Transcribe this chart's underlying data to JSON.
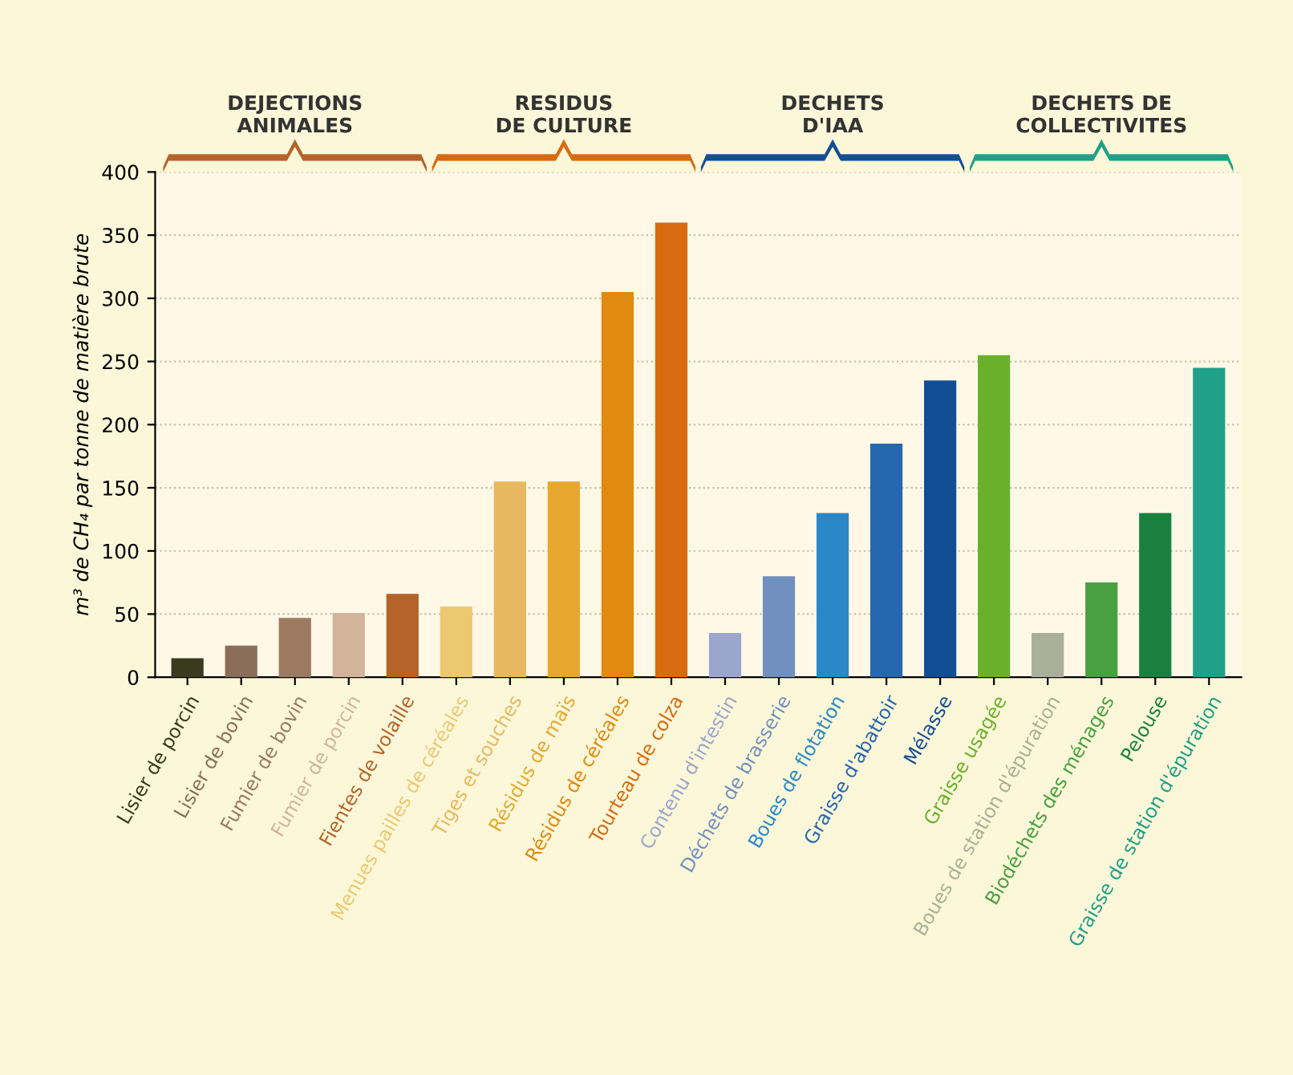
{
  "chart_data": {
    "type": "bar",
    "ylabel": "m³ de CH₄ par tonne de matière brute",
    "categories": [
      "Lisier de porcin",
      "Lisier de bovin",
      "Fumier de bovin",
      "Fumier de porcin",
      "Fientes de volaille",
      "Menues pailles de céréales",
      "Tiges et souches",
      "Résidus de maïs",
      "Résidus de céréales",
      "Tourteau de colza",
      "Contenu d'intestin",
      "Déchets de brasserie",
      "Boues de flotation",
      "Graisse d'abattoir",
      "Mélasse",
      "Graisse usagée",
      "Boues de station d'épuration",
      "Biodéchets des ménages",
      "Pelouse",
      "Graisse de station d'épuration"
    ],
    "values": [
      15,
      25,
      47,
      51,
      66,
      56,
      155,
      155,
      305,
      360,
      35,
      80,
      130,
      185,
      235,
      255,
      35,
      75,
      130,
      245
    ],
    "colors": [
      "#3a3a1e",
      "#8a6e5a",
      "#9c7a62",
      "#d2b49a",
      "#b5632a",
      "#ecc870",
      "#e8b860",
      "#e8a830",
      "#e08a10",
      "#d86a10",
      "#9aa6cc",
      "#7090c0",
      "#2a88c8",
      "#2668b0",
      "#134e94",
      "#6ab02a",
      "#a8b098",
      "#48a040",
      "#1a8040",
      "#20a088"
    ],
    "annotations": [
      "DEJECTIONS\nANIMALES",
      "RESIDUS\nDE CULTURE",
      "DECHETS\nD'IAA",
      "DECHETS DE\nCOLLECTIVITES"
    ],
    "ylim": [
      0,
      400
    ],
    "yticks": [
      0,
      50,
      100,
      150,
      200,
      250,
      300,
      350,
      400
    ],
    "grid": "y"
  }
}
